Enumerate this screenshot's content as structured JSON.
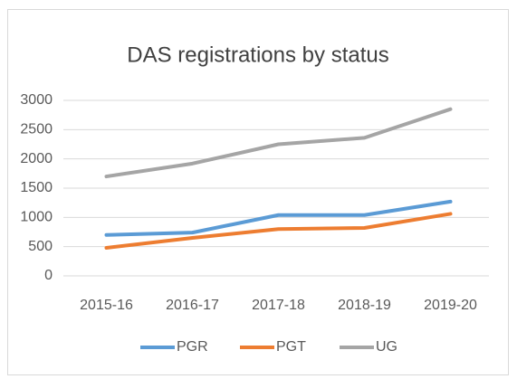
{
  "chart_data": {
    "type": "line",
    "title": "DAS registrations by status",
    "categories": [
      "2015-16",
      "2016-17",
      "2017-18",
      "2018-19",
      "2019-20"
    ],
    "series": [
      {
        "name": "PGR",
        "color": "#5b9bd5",
        "values": [
          700,
          740,
          1040,
          1040,
          1270
        ]
      },
      {
        "name": "PGT",
        "color": "#ed7d31",
        "values": [
          480,
          650,
          800,
          820,
          1060
        ]
      },
      {
        "name": "UG",
        "color": "#a5a5a5",
        "values": [
          1700,
          1920,
          2250,
          2360,
          2850
        ]
      }
    ],
    "ylim": [
      0,
      3000
    ],
    "yticks": [
      0,
      500,
      1000,
      1500,
      2000,
      2500,
      3000
    ],
    "grid": true,
    "legend": "bottom"
  }
}
